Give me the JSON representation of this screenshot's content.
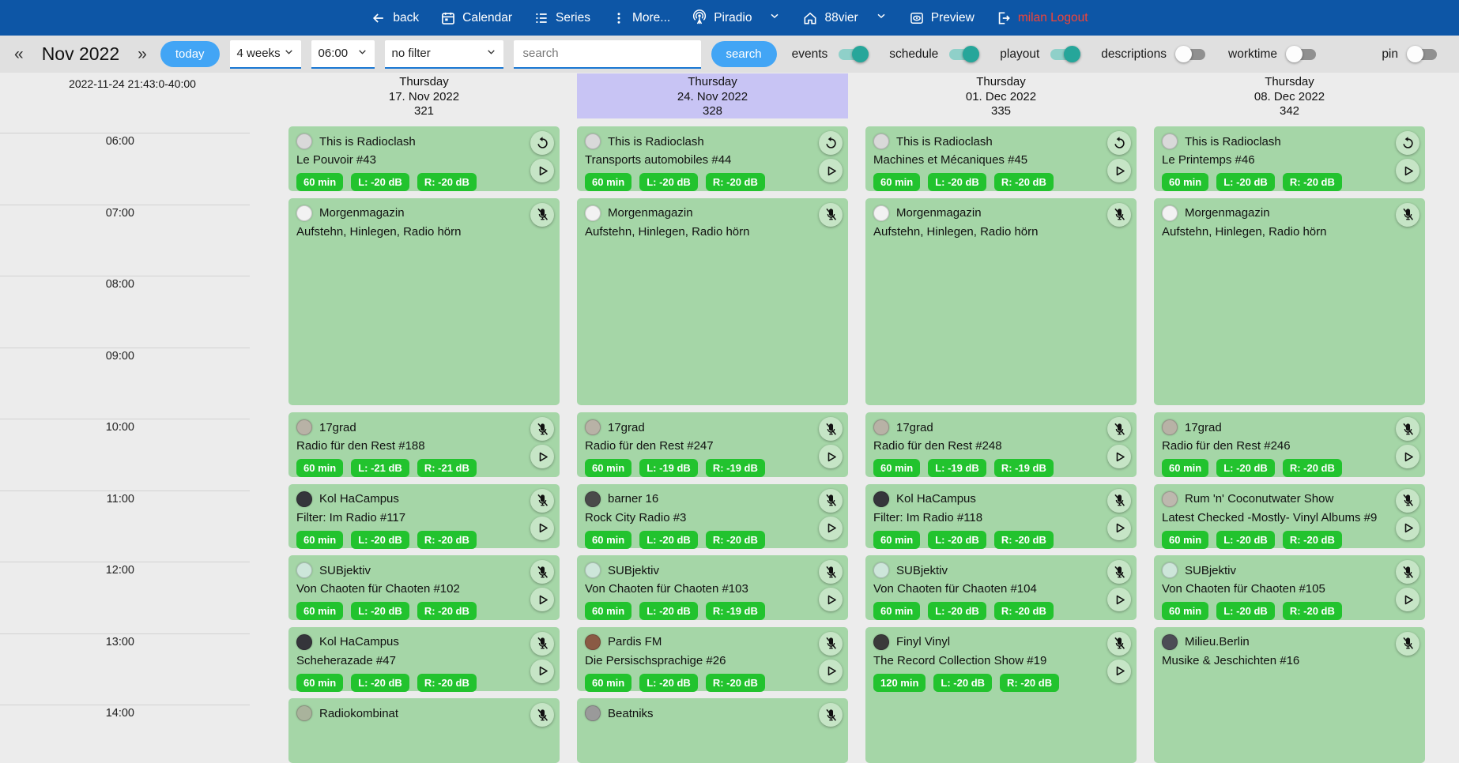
{
  "topnav": {
    "back": "back",
    "calendar": "Calendar",
    "series": "Series",
    "more": "More...",
    "piradio": "Piradio",
    "station": "88vier",
    "preview": "Preview",
    "logout": "milan Logout"
  },
  "toolbar": {
    "prev": "«",
    "month_label": "Nov 2022",
    "next": "»",
    "today": "today",
    "range_select": "4 weeks",
    "time_select": "06:00",
    "filter_select": "no filter",
    "search_placeholder": "search",
    "search_button": "search",
    "toggles": [
      {
        "label": "events",
        "on": true
      },
      {
        "label": "schedule",
        "on": true
      },
      {
        "label": "playout",
        "on": true
      },
      {
        "label": "descriptions",
        "on": false
      },
      {
        "label": "worktime",
        "on": false
      },
      {
        "label": "pin",
        "on": false
      }
    ]
  },
  "grid": {
    "timestamp": "2022-11-24 21:43:0-40:00",
    "times": [
      "06:00",
      "07:00",
      "08:00",
      "09:00",
      "10:00",
      "11:00",
      "12:00",
      "13:00",
      "14:00"
    ],
    "columns": [
      {
        "weekday": "Thursday",
        "date": "17. Nov 2022",
        "day_number": "321",
        "highlighted": false,
        "events": [
          {
            "series": "This is Radioclash",
            "episode": "Le Pouvoir #43",
            "badges": [
              "60 min",
              "L: -20 dB",
              "R: -20 dB"
            ],
            "top_icon": "repeat",
            "play": true,
            "row": 0,
            "span": 1,
            "avatar": "#d9d9d9"
          },
          {
            "series": "Morgenmagazin",
            "episode": "Aufstehn, Hinlegen, Radio hörn",
            "badges": [],
            "top_icon": "mic-off",
            "play": false,
            "row": 1,
            "span": 3,
            "avatar": "#f2f2f2"
          },
          {
            "series": "17grad",
            "episode": "Radio für den Rest #188",
            "badges": [
              "60 min",
              "L: -21 dB",
              "R: -21 dB"
            ],
            "top_icon": "mic-off",
            "play": true,
            "row": 4,
            "span": 1,
            "avatar": "#b8b2a6"
          },
          {
            "series": "Kol HaCampus",
            "episode": "Filter: Im Radio #117",
            "badges": [
              "60 min",
              "L: -20 dB",
              "R: -20 dB"
            ],
            "top_icon": "mic-off",
            "play": true,
            "row": 5,
            "span": 1,
            "avatar": "#35353b"
          },
          {
            "series": "SUBjektiv",
            "episode": "Von Chaoten für Chaoten #102",
            "badges": [
              "60 min",
              "L: -20 dB",
              "R: -20 dB"
            ],
            "top_icon": "mic-off",
            "play": true,
            "row": 6,
            "span": 1,
            "avatar": "#cde6da"
          },
          {
            "series": "Kol HaCampus",
            "episode": "Scheherazade #47",
            "badges": [
              "60 min",
              "L: -20 dB",
              "R: -20 dB"
            ],
            "top_icon": "mic-off",
            "play": true,
            "row": 7,
            "span": 1,
            "avatar": "#35353b"
          },
          {
            "series": "Radiokombinat",
            "episode": "",
            "badges": [],
            "top_icon": "mic-off",
            "play": false,
            "row": 8,
            "span": 1,
            "avatar": "#a9b39c"
          }
        ]
      },
      {
        "weekday": "Thursday",
        "date": "24. Nov 2022",
        "day_number": "328",
        "highlighted": true,
        "events": [
          {
            "series": "This is Radioclash",
            "episode": "Transports automobiles #44",
            "badges": [
              "60 min",
              "L: -20 dB",
              "R: -20 dB"
            ],
            "top_icon": "repeat",
            "play": true,
            "row": 0,
            "span": 1,
            "avatar": "#d9d9d9"
          },
          {
            "series": "Morgenmagazin",
            "episode": "Aufstehn, Hinlegen, Radio hörn",
            "badges": [],
            "top_icon": "mic-off",
            "play": false,
            "row": 1,
            "span": 3,
            "avatar": "#f2f2f2"
          },
          {
            "series": "17grad",
            "episode": "Radio für den Rest #247",
            "badges": [
              "60 min",
              "L: -19 dB",
              "R: -19 dB"
            ],
            "top_icon": "mic-off",
            "play": true,
            "row": 4,
            "span": 1,
            "avatar": "#b8b2a6"
          },
          {
            "series": "barner 16",
            "episode": "Rock City Radio #3",
            "badges": [
              "60 min",
              "L: -20 dB",
              "R: -20 dB"
            ],
            "top_icon": "mic-off",
            "play": true,
            "row": 5,
            "span": 1,
            "avatar": "#4a4a4a"
          },
          {
            "series": "SUBjektiv",
            "episode": "Von Chaoten für Chaoten #103",
            "badges": [
              "60 min",
              "L: -20 dB",
              "R: -19 dB"
            ],
            "top_icon": "mic-off",
            "play": true,
            "row": 6,
            "span": 1,
            "avatar": "#cde6da"
          },
          {
            "series": "Pardis FM",
            "episode": "Die Persischsprachige #26",
            "badges": [
              "60 min",
              "L: -20 dB",
              "R: -20 dB"
            ],
            "top_icon": "mic-off",
            "play": true,
            "row": 7,
            "span": 1,
            "avatar": "#8a5a44"
          },
          {
            "series": "Beatniks",
            "episode": "",
            "badges": [],
            "top_icon": "mic-off",
            "play": false,
            "row": 8,
            "span": 1,
            "avatar": "#9a9a9a"
          }
        ]
      },
      {
        "weekday": "Thursday",
        "date": "01. Dec 2022",
        "day_number": "335",
        "highlighted": false,
        "events": [
          {
            "series": "This is Radioclash",
            "episode": "Machines et Mécaniques #45",
            "badges": [
              "60 min",
              "L: -20 dB",
              "R: -20 dB"
            ],
            "top_icon": "repeat",
            "play": true,
            "row": 0,
            "span": 1,
            "avatar": "#d9d9d9"
          },
          {
            "series": "Morgenmagazin",
            "episode": "Aufstehn, Hinlegen, Radio hörn",
            "badges": [],
            "top_icon": "mic-off",
            "play": false,
            "row": 1,
            "span": 3,
            "avatar": "#f2f2f2"
          },
          {
            "series": "17grad",
            "episode": "Radio für den Rest #248",
            "badges": [
              "60 min",
              "L: -19 dB",
              "R: -19 dB"
            ],
            "top_icon": "mic-off",
            "play": true,
            "row": 4,
            "span": 1,
            "avatar": "#b8b2a6"
          },
          {
            "series": "Kol HaCampus",
            "episode": "Filter: Im Radio #118",
            "badges": [
              "60 min",
              "L: -20 dB",
              "R: -20 dB"
            ],
            "top_icon": "mic-off",
            "play": true,
            "row": 5,
            "span": 1,
            "avatar": "#35353b"
          },
          {
            "series": "SUBjektiv",
            "episode": "Von Chaoten für Chaoten #104",
            "badges": [
              "60 min",
              "L: -20 dB",
              "R: -20 dB"
            ],
            "top_icon": "mic-off",
            "play": true,
            "row": 6,
            "span": 1,
            "avatar": "#cde6da"
          },
          {
            "series": "Finyl Vinyl",
            "episode": "The Record Collection Show #19",
            "badges": [
              "120 min",
              "L: -20 dB",
              "R: -20 dB"
            ],
            "top_icon": "mic-off",
            "play": true,
            "row": 7,
            "span": 2,
            "avatar": "#3a3a3a"
          }
        ]
      },
      {
        "weekday": "Thursday",
        "date": "08. Dec 2022",
        "day_number": "342",
        "highlighted": false,
        "events": [
          {
            "series": "This is Radioclash",
            "episode": "Le Printemps #46",
            "badges": [
              "60 min",
              "L: -20 dB",
              "R: -20 dB"
            ],
            "top_icon": "repeat",
            "play": true,
            "row": 0,
            "span": 1,
            "avatar": "#d9d9d9"
          },
          {
            "series": "Morgenmagazin",
            "episode": "Aufstehn, Hinlegen, Radio hörn",
            "badges": [],
            "top_icon": "mic-off",
            "play": false,
            "row": 1,
            "span": 3,
            "avatar": "#f2f2f2"
          },
          {
            "series": "17grad",
            "episode": "Radio für den Rest #246",
            "badges": [
              "60 min",
              "L: -20 dB",
              "R: -20 dB"
            ],
            "top_icon": "mic-off",
            "play": true,
            "row": 4,
            "span": 1,
            "avatar": "#b8b2a6"
          },
          {
            "series": "Rum 'n' Coconutwater Show",
            "episode": "Latest Checked -Mostly- Vinyl Albums #9",
            "badges": [
              "60 min",
              "L: -20 dB",
              "R: -20 dB"
            ],
            "top_icon": "mic-off",
            "play": true,
            "row": 5,
            "span": 1,
            "avatar": "#bdb8ae"
          },
          {
            "series": "SUBjektiv",
            "episode": "Von Chaoten für Chaoten #105",
            "badges": [
              "60 min",
              "L: -20 dB",
              "R: -20 dB"
            ],
            "top_icon": "mic-off",
            "play": true,
            "row": 6,
            "span": 1,
            "avatar": "#cde6da"
          },
          {
            "series": "Milieu.Berlin",
            "episode": "Musike & Jeschichten #16",
            "badges": [],
            "top_icon": "mic-off",
            "play": false,
            "row": 7,
            "span": 2,
            "avatar": "#4c4c55"
          }
        ]
      }
    ]
  },
  "colors": {
    "topbar_bg": "#0d56a6",
    "toolbar_bg": "#e0e0e0",
    "page_bg": "#ececec",
    "accent_blue": "#42a5f5",
    "underline_blue": "#1976d2",
    "card_green": "#a5d6a7",
    "badge_green": "#22c32e",
    "toggle_on": "#26a69a",
    "toggle_on_track": "#8fd0c9",
    "highlight_purple": "#c8c4f4",
    "logout_red": "#f44336"
  }
}
